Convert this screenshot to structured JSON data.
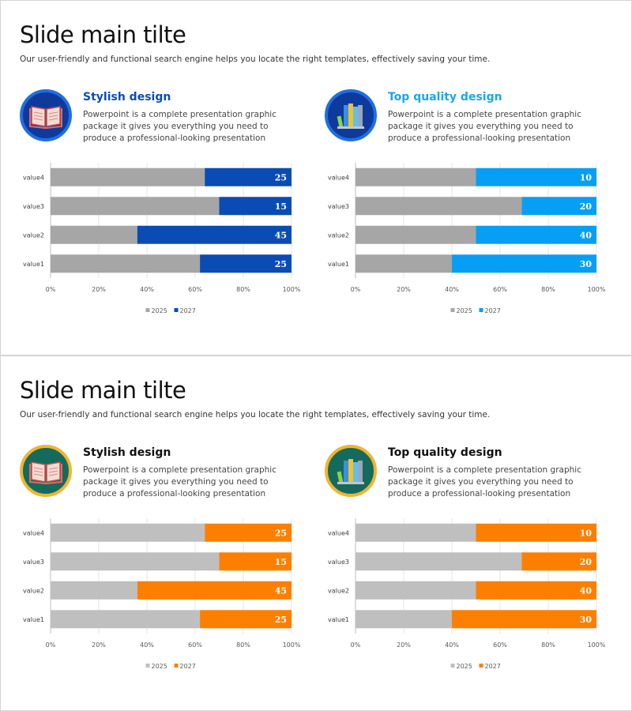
{
  "slides": [
    {
      "theme": {
        "badge_fill": "#0d3a9c",
        "badge_ring": "#1f6fe0",
        "heading_left": "#0a4cb3",
        "heading_right": "#1aa6ee",
        "icon_book_color": "#f2d5c9"
      },
      "title": "Slide main tilte",
      "subtitle": "Our user-friendly and functional search engine helps you locate the right templates, effectively saving your time.",
      "cards": [
        {
          "heading": "Stylish design",
          "body": "Powerpoint is a complete presentation graphic package it gives you everything you need to produce a professional-looking presentation",
          "icon": "open-book-icon"
        },
        {
          "heading": "Top quality design",
          "body": "Powerpoint is a complete presentation graphic package it gives you everything you need to produce a professional-looking presentation",
          "icon": "books-icon"
        }
      ]
    },
    {
      "theme": {
        "badge_fill": "#146b5c",
        "badge_ring": "#f0b530",
        "heading_left": "#111111",
        "heading_right": "#111111",
        "icon_book_color": "#f2d5c9"
      },
      "title": "Slide main tilte",
      "subtitle": "Our user-friendly and functional search engine helps you locate the right templates, effectively saving your time.",
      "cards": [
        {
          "heading": "Stylish design",
          "body": "Powerpoint is a complete presentation graphic package it gives you everything you need to produce a professional-looking presentation",
          "icon": "open-book-icon"
        },
        {
          "heading": "Top quality design",
          "body": "Powerpoint is a complete presentation graphic package it gives you everything you need to produce a professional-looking presentation",
          "icon": "books-icon"
        }
      ]
    }
  ],
  "chart_data": [
    {
      "type": "bar",
      "orientation": "horizontal",
      "stacked": "percent",
      "categories": [
        "value4",
        "value3",
        "value2",
        "value1"
      ],
      "series": [
        {
          "name": "2025",
          "values": [
            64,
            70,
            36,
            62
          ],
          "color": "#a6a6a6"
        },
        {
          "name": "2027",
          "values": [
            36,
            30,
            64,
            38
          ],
          "color": "#0a4cb3"
        }
      ],
      "data_labels": [
        "25",
        "15",
        "45",
        "25"
      ],
      "xticks": [
        "0%",
        "20%",
        "40%",
        "60%",
        "80%",
        "100%"
      ],
      "xlim": [
        0,
        100
      ],
      "legend": "bottom"
    },
    {
      "type": "bar",
      "orientation": "horizontal",
      "stacked": "percent",
      "categories": [
        "value4",
        "value3",
        "value2",
        "value1"
      ],
      "series": [
        {
          "name": "2025",
          "values": [
            50,
            69,
            50,
            40
          ],
          "color": "#a6a6a6"
        },
        {
          "name": "2027",
          "values": [
            50,
            31,
            50,
            60
          ],
          "color": "#079ff5"
        }
      ],
      "data_labels": [
        "10",
        "20",
        "40",
        "30"
      ],
      "xticks": [
        "0%",
        "20%",
        "40%",
        "60%",
        "80%",
        "100%"
      ],
      "xlim": [
        0,
        100
      ],
      "legend": "bottom"
    },
    {
      "type": "bar",
      "orientation": "horizontal",
      "stacked": "percent",
      "categories": [
        "value4",
        "value3",
        "value2",
        "value1"
      ],
      "series": [
        {
          "name": "2025",
          "values": [
            64,
            70,
            36,
            62
          ],
          "color": "#bfbfbf"
        },
        {
          "name": "2027",
          "values": [
            36,
            30,
            64,
            38
          ],
          "color": "#fd7f00"
        }
      ],
      "data_labels": [
        "25",
        "15",
        "45",
        "25"
      ],
      "xticks": [
        "0%",
        "20%",
        "40%",
        "60%",
        "80%",
        "100%"
      ],
      "xlim": [
        0,
        100
      ],
      "legend": "bottom"
    },
    {
      "type": "bar",
      "orientation": "horizontal",
      "stacked": "percent",
      "categories": [
        "value4",
        "value3",
        "value2",
        "value1"
      ],
      "series": [
        {
          "name": "2025",
          "values": [
            50,
            69,
            50,
            40
          ],
          "color": "#bfbfbf"
        },
        {
          "name": "2027",
          "values": [
            50,
            31,
            50,
            60
          ],
          "color": "#fd7f00"
        }
      ],
      "data_labels": [
        "10",
        "20",
        "40",
        "30"
      ],
      "xticks": [
        "0%",
        "20%",
        "40%",
        "60%",
        "80%",
        "100%"
      ],
      "xlim": [
        0,
        100
      ],
      "legend": "bottom"
    }
  ]
}
